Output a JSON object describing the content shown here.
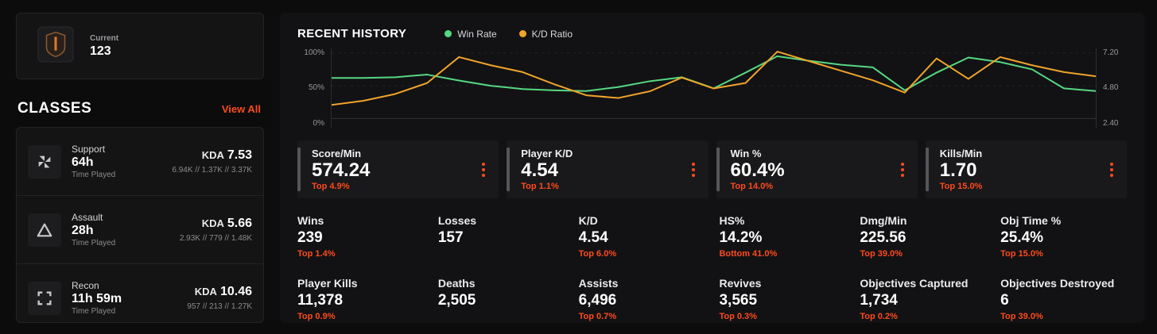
{
  "colors": {
    "accent": "#ff4a1d",
    "green": "#56d882",
    "orange": "#f0a32b",
    "page_bg": "#0c0c0d",
    "panel_bg": "#121214"
  },
  "icons": {
    "rank_emblem": "rank-emblem-icon",
    "support": "support-class-icon",
    "assault": "assault-class-icon",
    "recon": "recon-class-icon",
    "card_menu": "kebab-menu-icon"
  },
  "sidebar": {
    "rank": {
      "label": "Current",
      "value": "123"
    },
    "classes": {
      "title": "CLASSES",
      "view_all": "View All",
      "items": [
        {
          "name": "Support",
          "time": "64h",
          "time_label": "Time Played",
          "kda_label": "KDA",
          "kda": "7.53",
          "detail": "6.94K // 1.37K // 3.37K"
        },
        {
          "name": "Assault",
          "time": "28h",
          "time_label": "Time Played",
          "kda_label": "KDA",
          "kda": "5.66",
          "detail": "2.93K // 779 // 1.48K"
        },
        {
          "name": "Recon",
          "time": "11h 59m",
          "time_label": "Time Played",
          "kda_label": "KDA",
          "kda": "10.46",
          "detail": "957 // 213 // 1.27K"
        }
      ]
    }
  },
  "main": {
    "history": {
      "title": "RECENT HISTORY",
      "legend": [
        {
          "label": "Win Rate",
          "color": "#56d882"
        },
        {
          "label": "K/D Ratio",
          "color": "#f0a32b"
        }
      ]
    },
    "stat_cards": [
      {
        "label": "Score/Min",
        "value": "574.24",
        "rank": "Top 4.9%"
      },
      {
        "label": "Player K/D",
        "value": "4.54",
        "rank": "Top 1.1%"
      },
      {
        "label": "Win %",
        "value": "60.4%",
        "rank": "Top 14.0%"
      },
      {
        "label": "Kills/Min",
        "value": "1.70",
        "rank": "Top 15.0%"
      }
    ],
    "stats_grid": [
      {
        "label": "Wins",
        "value": "239",
        "rank": "Top 1.4%"
      },
      {
        "label": "Losses",
        "value": "157",
        "rank": ""
      },
      {
        "label": "K/D",
        "value": "4.54",
        "rank": "Top 6.0%"
      },
      {
        "label": "HS%",
        "value": "14.2%",
        "rank": "Bottom 41.0%"
      },
      {
        "label": "Dmg/Min",
        "value": "225.56",
        "rank": "Top 39.0%"
      },
      {
        "label": "Obj Time %",
        "value": "25.4%",
        "rank": "Top 15.0%"
      },
      {
        "label": "Player Kills",
        "value": "11,378",
        "rank": "Top 0.9%"
      },
      {
        "label": "Deaths",
        "value": "2,505",
        "rank": ""
      },
      {
        "label": "Assists",
        "value": "6,496",
        "rank": "Top 0.7%"
      },
      {
        "label": "Revives",
        "value": "3,565",
        "rank": "Top 0.3%"
      },
      {
        "label": "Objectives Captured",
        "value": "1,734",
        "rank": "Top 0.2%"
      },
      {
        "label": "Objectives Destroyed",
        "value": "6",
        "rank": "Top 39.0%"
      }
    ]
  },
  "chart_data": {
    "type": "line",
    "title": "RECENT HISTORY",
    "x": [
      1,
      2,
      3,
      4,
      5,
      6,
      7,
      8,
      9,
      10,
      11,
      12,
      13,
      14,
      15,
      16,
      17,
      18,
      19,
      20,
      21,
      22,
      23,
      24,
      25
    ],
    "series": [
      {
        "name": "Win Rate",
        "axis": "left",
        "color": "#56d882",
        "values": [
          62,
          62,
          63,
          67,
          58,
          50,
          45,
          43,
          42,
          48,
          57,
          63,
          46,
          70,
          95,
          88,
          82,
          78,
          43,
          70,
          93,
          86,
          75,
          46,
          42
        ]
      },
      {
        "name": "K/D Ratio",
        "axis": "right",
        "color": "#f0a32b",
        "values": [
          3.4,
          3.7,
          4.2,
          5.0,
          6.9,
          6.3,
          5.8,
          4.9,
          4.1,
          3.9,
          4.4,
          5.4,
          4.6,
          5.0,
          7.3,
          6.6,
          5.9,
          5.2,
          4.3,
          6.8,
          5.3,
          6.9,
          6.3,
          5.8,
          5.5
        ]
      }
    ],
    "left_axis": {
      "label": "Win Rate",
      "min": 0,
      "max": 100,
      "ticks": [
        "100%",
        "50%",
        "0%"
      ]
    },
    "right_axis": {
      "label": "K/D Ratio",
      "min": 2.4,
      "max": 7.2,
      "ticks": [
        "7.20",
        "4.80",
        "2.40"
      ]
    },
    "grid": true,
    "legend_position": "top"
  }
}
